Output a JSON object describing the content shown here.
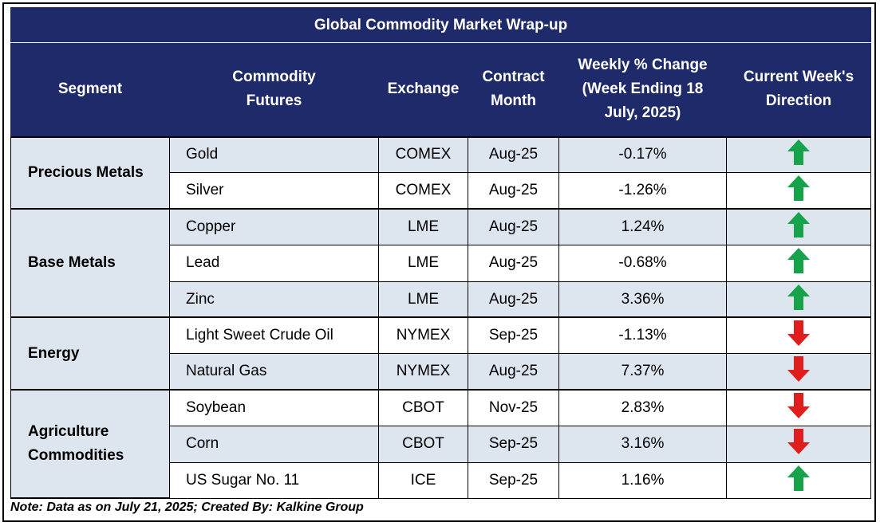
{
  "title": "Global Commodity Market Wrap-up",
  "headers": {
    "segment": "Segment",
    "commodity": "Commodity Futures",
    "exchange": "Exchange",
    "contract": "Contract Month",
    "weekly": "Weekly % Change (Week Ending 18 July, 2025)",
    "direction": "Current Week's Direction"
  },
  "segments": [
    {
      "name": "Precious Metals",
      "rows": [
        {
          "commodity": "Gold",
          "exchange": "COMEX",
          "month": "Aug-25",
          "change": "-0.17%",
          "direction": "up"
        },
        {
          "commodity": "Silver",
          "exchange": "COMEX",
          "month": "Aug-25",
          "change": "-1.26%",
          "direction": "up"
        }
      ]
    },
    {
      "name": "Base Metals",
      "rows": [
        {
          "commodity": "Copper",
          "exchange": "LME",
          "month": "Aug-25",
          "change": "1.24%",
          "direction": "up"
        },
        {
          "commodity": "Lead",
          "exchange": "LME",
          "month": "Aug-25",
          "change": "-0.68%",
          "direction": "up"
        },
        {
          "commodity": "Zinc",
          "exchange": "LME",
          "month": "Aug-25",
          "change": "3.36%",
          "direction": "up"
        }
      ]
    },
    {
      "name": "Energy",
      "rows": [
        {
          "commodity": "Light Sweet Crude Oil",
          "exchange": "NYMEX",
          "month": "Sep-25",
          "change": "-1.13%",
          "direction": "down"
        },
        {
          "commodity": "Natural Gas",
          "exchange": "NYMEX",
          "month": "Aug-25",
          "change": "7.37%",
          "direction": "down"
        }
      ]
    },
    {
      "name": "Agriculture Commodities",
      "rows": [
        {
          "commodity": "Soybean",
          "exchange": "CBOT",
          "month": "Nov-25",
          "change": "2.83%",
          "direction": "down"
        },
        {
          "commodity": "Corn",
          "exchange": "CBOT",
          "month": "Sep-25",
          "change": "3.16%",
          "direction": "down"
        },
        {
          "commodity": "US Sugar No. 11",
          "exchange": "ICE",
          "month": "Sep-25",
          "change": "1.16%",
          "direction": "up"
        }
      ]
    }
  ],
  "colors": {
    "up": "#16a34a",
    "down": "#e01e1e",
    "header": "#1f2a6b",
    "shade": "#dde5ef"
  },
  "note": "Note: Data as on July 21, 2025; Created By: Kalkine Group"
}
